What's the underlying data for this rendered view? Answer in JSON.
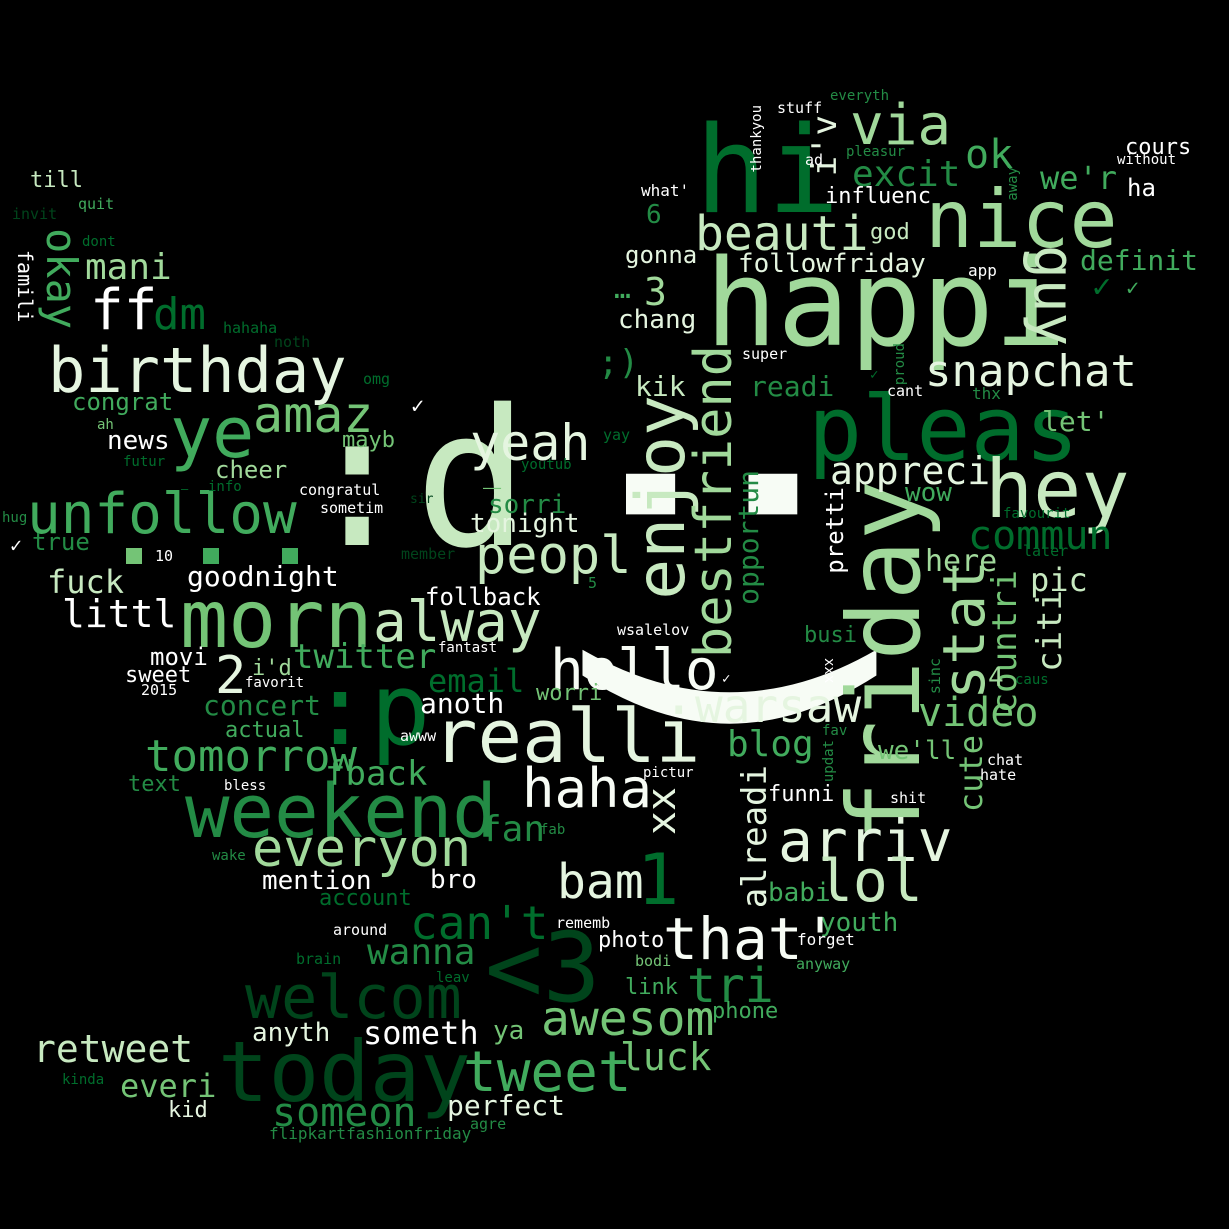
{
  "colors": {
    "background": "#000000",
    "palette": [
      "#f7fcf5",
      "#e5f5e0",
      "#c7e9c0",
      "#a1d99b",
      "#74c476",
      "#41ab5d",
      "#238b45",
      "#006d2c",
      "#00441b"
    ]
  },
  "words": [
    {
      "text": ":d",
      "color": "#c7e9c0"
    },
    {
      "text": ":)",
      "color": "#f7fcf5"
    },
    {
      "text": "happi",
      "color": "#a1d99b"
    },
    {
      "text": "hi",
      "color": "#006d2c"
    },
    {
      "text": "nice",
      "color": "#a1d99b"
    },
    {
      "text": "via",
      "color": "#a1d99b"
    },
    {
      "text": "ok",
      "color": "#41ab5d"
    },
    {
      "text": "excit",
      "color": "#238b45"
    },
    {
      "text": "we'r",
      "color": "#41ab5d"
    },
    {
      "text": "cours",
      "color": "#ffffff"
    },
    {
      "text": "ha",
      "color": "#ffffff"
    },
    {
      "text": "influenc",
      "color": "#ffffff"
    },
    {
      "text": "beauti",
      "color": "#c7e9c0"
    },
    {
      "text": "god",
      "color": "#c7e9c0"
    },
    {
      "text": "definit",
      "color": "#41ab5d"
    },
    {
      "text": "guy",
      "color": "#c7e9c0"
    },
    {
      "text": "followfriday",
      "color": "#e5f5e0"
    },
    {
      "text": "app",
      "color": "#ffffff"
    },
    {
      "text": "gonna",
      "color": "#e5f5e0"
    },
    {
      "text": "chang",
      "color": "#e5f5e0"
    },
    {
      "text": "pleas",
      "color": "#006d2c"
    },
    {
      "text": "friday",
      "color": "#a1d99b"
    },
    {
      "text": "hey",
      "color": "#c7e9c0"
    },
    {
      "text": "snapchat",
      "color": "#e5f5e0"
    },
    {
      "text": "let'",
      "color": "#74c476"
    },
    {
      "text": "appreci",
      "color": "#e5f5e0"
    },
    {
      "text": "commun",
      "color": "#006d2c"
    },
    {
      "text": "wow",
      "color": "#41ab5d"
    },
    {
      "text": "here",
      "color": "#a1d99b"
    },
    {
      "text": "stat",
      "color": "#a1d99b"
    },
    {
      "text": "countri",
      "color": "#74c476"
    },
    {
      "text": "citi",
      "color": "#c7e9c0"
    },
    {
      "text": "pic",
      "color": "#c7e9c0"
    },
    {
      "text": "enjoy",
      "color": "#c7e9c0"
    },
    {
      "text": "bestfriend",
      "color": "#a1d99b"
    },
    {
      "text": "opportun",
      "color": "#238b45"
    },
    {
      "text": "pretti",
      "color": "#ffffff"
    },
    {
      "text": "readi",
      "color": "#238b45"
    },
    {
      "text": "kik",
      "color": "#c7e9c0"
    },
    {
      "text": "super",
      "color": "#ffffff"
    },
    {
      "text": "cant",
      "color": "#ffffff"
    },
    {
      "text": "thx",
      "color": "#238b45"
    },
    {
      "text": "yeah",
      "color": "#e5f5e0"
    },
    {
      "text": "mayb",
      "color": "#74c476"
    },
    {
      "text": "sorri",
      "color": "#238b45"
    },
    {
      "text": "tonight",
      "color": "#e5f5e0"
    },
    {
      "text": "peopl",
      "color": "#c7e9c0"
    },
    {
      "text": "follback",
      "color": "#ffffff"
    },
    {
      "text": "alway",
      "color": "#c7e9c0"
    },
    {
      "text": "morn",
      "color": "#74c476"
    },
    {
      "text": ":p",
      "color": "#006d2c"
    },
    {
      "text": "realli",
      "color": "#e5f5e0"
    },
    {
      "text": "hello",
      "color": "#f7fcf5"
    },
    {
      "text": "warsaw",
      "color": "#e5f5e0"
    },
    {
      "text": "video",
      "color": "#74c476"
    },
    {
      "text": "blog",
      "color": "#41ab5d"
    },
    {
      "text": "we'll",
      "color": "#74c476"
    },
    {
      "text": "cute",
      "color": "#74c476"
    },
    {
      "text": "haha",
      "color": "#f7fcf5"
    },
    {
      "text": "xx",
      "color": "#e5f5e0"
    },
    {
      "text": "arriv",
      "color": "#e5f5e0"
    },
    {
      "text": "lol",
      "color": "#c7e9c0"
    },
    {
      "text": "alreadi",
      "color": "#e5f5e0"
    },
    {
      "text": "funni",
      "color": "#ffffff"
    },
    {
      "text": "babi",
      "color": "#41ab5d"
    },
    {
      "text": "youth",
      "color": "#41ab5d"
    },
    {
      "text": "forget",
      "color": "#ffffff"
    },
    {
      "text": "weekend",
      "color": "#238b45"
    },
    {
      "text": "everyon",
      "color": "#a1d99b"
    },
    {
      "text": "fback",
      "color": "#41ab5d"
    },
    {
      "text": "fan",
      "color": "#238b45"
    },
    {
      "text": "bam",
      "color": "#e5f5e0"
    },
    {
      "text": "that'",
      "color": "#f7fcf5"
    },
    {
      "text": "tri",
      "color": "#238b45"
    },
    {
      "text": "awesom",
      "color": "#74c476"
    },
    {
      "text": "photo",
      "color": "#ffffff"
    },
    {
      "text": "link",
      "color": "#41ab5d"
    },
    {
      "text": "phone",
      "color": "#41ab5d"
    },
    {
      "text": "luck",
      "color": "#74c476"
    },
    {
      "text": "<3",
      "color": "#00441b"
    },
    {
      "text": "can't",
      "color": "#006d2c"
    },
    {
      "text": "wanna",
      "color": "#238b45"
    },
    {
      "text": "welcom",
      "color": "#00441b"
    },
    {
      "text": "today",
      "color": "#00441b"
    },
    {
      "text": "tweet",
      "color": "#41ab5d"
    },
    {
      "text": "someth",
      "color": "#ffffff"
    },
    {
      "text": "ya",
      "color": "#74c476"
    },
    {
      "text": "perfect",
      "color": "#e5f5e0"
    },
    {
      "text": "someon",
      "color": "#238b45"
    },
    {
      "text": "retweet",
      "color": "#c7e9c0"
    },
    {
      "text": "everi",
      "color": "#74c476"
    },
    {
      "text": "kid",
      "color": "#e5f5e0"
    },
    {
      "text": "flipkartfashionfriday",
      "color": "#238b45"
    },
    {
      "text": "agre",
      "color": "#238b45"
    },
    {
      "text": "anyth",
      "color": "#e5f5e0"
    },
    {
      "text": "tomorrow",
      "color": "#41ab5d"
    },
    {
      "text": "twitter",
      "color": "#41ab5d"
    },
    {
      "text": "email",
      "color": "#006d2c"
    },
    {
      "text": "anoth",
      "color": "#ffffff"
    },
    {
      "text": "worri",
      "color": "#74c476"
    },
    {
      "text": "mention",
      "color": "#ffffff"
    },
    {
      "text": "bro",
      "color": "#ffffff"
    },
    {
      "text": "account",
      "color": "#006d2c"
    },
    {
      "text": "unfollow",
      "color": "#41ab5d"
    },
    {
      "text": "goodnight",
      "color": "#ffffff"
    },
    {
      "text": "littl",
      "color": "#ffffff"
    },
    {
      "text": "fuck",
      "color": "#c7e9c0"
    },
    {
      "text": "birthday",
      "color": "#e5f5e0"
    },
    {
      "text": "ye",
      "color": "#41ab5d"
    },
    {
      "text": "amaz",
      "color": "#74c476"
    },
    {
      "text": "ff",
      "color": "#ffffff"
    },
    {
      "text": "dm",
      "color": "#006d2c"
    },
    {
      "text": "mani",
      "color": "#a1d99b"
    },
    {
      "text": "okay",
      "color": "#41ab5d"
    },
    {
      "text": "till",
      "color": "#c7e9c0"
    },
    {
      "text": "congrat",
      "color": "#41ab5d"
    },
    {
      "text": "news",
      "color": "#ffffff"
    },
    {
      "text": "cheer",
      "color": "#a1d99b"
    },
    {
      "text": "true",
      "color": "#238b45"
    },
    {
      "text": "movi",
      "color": "#ffffff"
    },
    {
      "text": "sweet",
      "color": "#ffffff"
    },
    {
      "text": "2",
      "color": "#e5f5e0"
    },
    {
      "text": "i'd",
      "color": "#a1d99b"
    },
    {
      "text": "concert",
      "color": "#238b45"
    },
    {
      "text": "actual",
      "color": "#41ab5d"
    },
    {
      "text": "text",
      "color": "#238b45"
    },
    {
      "text": "1",
      "color": "#006d2c"
    },
    {
      "text": "3",
      "color": "#a1d99b"
    },
    {
      "text": "4",
      "color": "#a1d99b"
    },
    {
      "text": "6",
      "color": "#238b45"
    },
    {
      "text": "…",
      "color": "#41ab5d"
    },
    {
      "text": ";)",
      "color": "#238b45"
    },
    {
      "text": "i'v",
      "color": "#e5f5e0"
    },
    {
      "text": "_",
      "color": "#74c476"
    },
    {
      "text": "busi",
      "color": "#238b45"
    },
    {
      "text": "stuff",
      "color": "#ffffff"
    },
    {
      "text": "everyth",
      "color": "#238b45"
    },
    {
      "text": "thankyou",
      "color": "#ffffff"
    },
    {
      "text": "ad",
      "color": "#ffffff"
    },
    {
      "text": "pleasur",
      "color": "#238b45"
    },
    {
      "text": "without",
      "color": "#ffffff"
    },
    {
      "text": "away",
      "color": "#238b45"
    },
    {
      "text": "what'",
      "color": "#ffffff"
    },
    {
      "text": "proud",
      "color": "#238b45"
    },
    {
      "text": "famili",
      "color": "#ffffff"
    },
    {
      "text": "invit",
      "color": "#00441b"
    },
    {
      "text": "quit",
      "color": "#41ab5d"
    },
    {
      "text": "dont",
      "color": "#006d2c"
    },
    {
      "text": "hahaha",
      "color": "#006d2c"
    },
    {
      "text": "noth",
      "color": "#00441b"
    },
    {
      "text": "omg",
      "color": "#006d2c"
    },
    {
      "text": "ah",
      "color": "#74c476"
    },
    {
      "text": "futur",
      "color": "#006d2c"
    },
    {
      "text": "info",
      "color": "#006d2c"
    },
    {
      "text": "congratul",
      "color": "#ffffff"
    },
    {
      "text": "sometim",
      "color": "#ffffff"
    },
    {
      "text": "sir",
      "color": "#00441b"
    },
    {
      "text": "youtub",
      "color": "#006d2c"
    },
    {
      "text": "yay",
      "color": "#006d2c"
    },
    {
      "text": "hug",
      "color": "#238b45"
    },
    {
      "text": "10",
      "color": "#ffffff"
    },
    {
      "text": "member",
      "color": "#00441b"
    },
    {
      "text": "5",
      "color": "#238b45"
    },
    {
      "text": "wsalelov",
      "color": "#ffffff"
    },
    {
      "text": "fantast",
      "color": "#ffffff"
    },
    {
      "text": "favorit",
      "color": "#ffffff"
    },
    {
      "text": "2015",
      "color": "#ffffff"
    },
    {
      "text": "awww",
      "color": "#ffffff"
    },
    {
      "text": "bless",
      "color": "#ffffff"
    },
    {
      "text": "wake",
      "color": "#238b45"
    },
    {
      "text": "fab",
      "color": "#238b45"
    },
    {
      "text": "pictur",
      "color": "#ffffff"
    },
    {
      "text": "fav",
      "color": "#238b45"
    },
    {
      "text": "updat",
      "color": "#238b45"
    },
    {
      "text": "xxx",
      "color": "#ffffff"
    },
    {
      "text": "sinc",
      "color": "#238b45"
    },
    {
      "text": "caus",
      "color": "#006d2c"
    },
    {
      "text": "later",
      "color": "#006d2c"
    },
    {
      "text": "favourit",
      "color": "#006d2c"
    },
    {
      "text": "chat",
      "color": "#ffffff"
    },
    {
      "text": "hate",
      "color": "#ffffff"
    },
    {
      "text": "shit",
      "color": "#ffffff"
    },
    {
      "text": "rememb",
      "color": "#ffffff"
    },
    {
      "text": "around",
      "color": "#ffffff"
    },
    {
      "text": "brain",
      "color": "#006d2c"
    },
    {
      "text": "leav",
      "color": "#006d2c"
    },
    {
      "text": "bodi",
      "color": "#74c476"
    },
    {
      "text": "anyway",
      "color": "#41ab5d"
    },
    {
      "text": "kinda",
      "color": "#006d2c"
    },
    {
      "text": "✓",
      "color": "#006d2c"
    },
    {
      "text": "✓",
      "color": "#41ab5d"
    },
    {
      "text": "✓",
      "color": "#ffffff"
    },
    {
      "text": "✓",
      "color": "#ffffff"
    },
    {
      "text": "✓",
      "color": "#006d2c"
    },
    {
      "text": "✓",
      "color": "#ffffff"
    },
    {
      "text": "—",
      "color": "#006d2c"
    }
  ],
  "blocks": [
    {
      "color": "#74c476"
    },
    {
      "color": "#41ab5d"
    },
    {
      "color": "#41ab5d"
    }
  ]
}
